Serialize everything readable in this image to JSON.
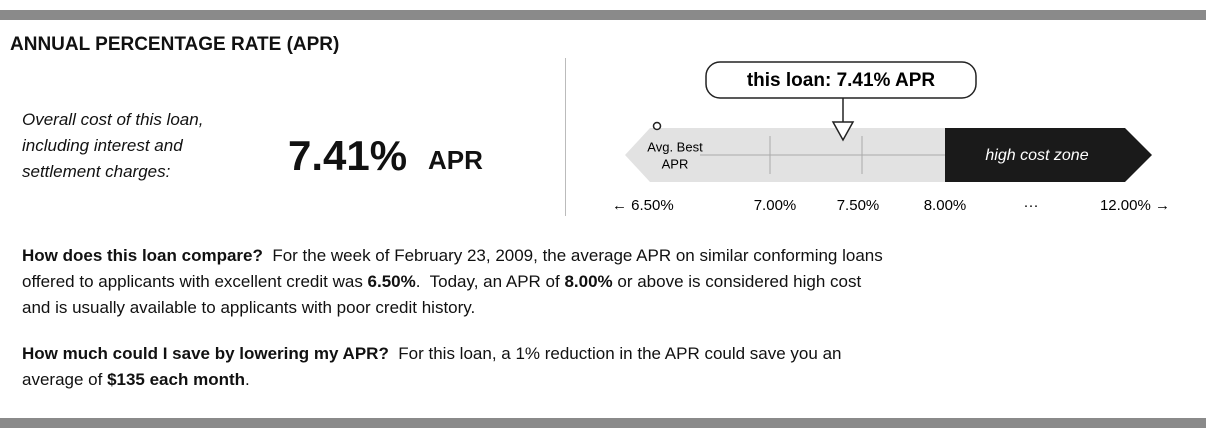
{
  "header": {
    "title": "ANNUAL PERCENTAGE RATE (APR)"
  },
  "summary": {
    "description": [
      "Overall cost of this loan,",
      "including interest and",
      "settlement charges:"
    ],
    "rate": "7.41%",
    "unit": "APR"
  },
  "scale": {
    "callout": "this loan: 7.41% APR",
    "best_label": [
      "Avg. Best",
      "APR"
    ],
    "zone_label": "high cost zone",
    "axis_labels": [
      "← 6.50%",
      "7.00%",
      "7.50%",
      "8.00%",
      "···",
      "12.00% →"
    ]
  },
  "paragraphs": [
    [
      [
        {
          "text": "How does this loan compare?",
          "bold": true
        },
        {
          "text": "  For the week of February 23, 2009, the average APR on similar conforming loans",
          "bold": false
        }
      ],
      [
        {
          "text": "offered to applicants with excellent credit was ",
          "bold": false
        },
        {
          "text": "6.50%",
          "bold": true
        },
        {
          "text": ".  Today, an APR of ",
          "bold": false
        },
        {
          "text": "8.00%",
          "bold": true
        },
        {
          "text": " or above is considered high cost",
          "bold": false
        }
      ],
      [
        {
          "text": "and is usually available to applicants with poor credit history.",
          "bold": false
        }
      ]
    ],
    [
      [
        {
          "text": "How much could I save by lowering my APR?",
          "bold": true
        },
        {
          "text": "  For this loan, a 1% reduction in the APR could save you an",
          "bold": false
        }
      ],
      [
        {
          "text": "average of ",
          "bold": false
        },
        {
          "text": "$135 each month",
          "bold": true
        },
        {
          "text": ".",
          "bold": false
        }
      ]
    ]
  ]
}
